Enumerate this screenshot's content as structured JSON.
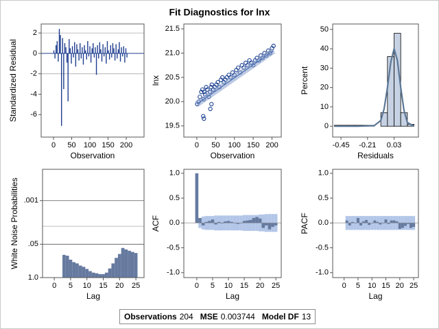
{
  "title": "Fit Diagnostics for lnx",
  "footer": [
    {
      "label": "Observations",
      "value": 204
    },
    {
      "label": "MSE",
      "value": 0.003744
    },
    {
      "label": "Model DF",
      "value": 13
    }
  ],
  "chart_data": [
    {
      "type": "needle",
      "xlabel": "Observation",
      "ylabel": "Standardized Residual",
      "color": "#1f3d8f",
      "x": [
        1,
        4,
        7,
        10,
        13,
        16,
        19,
        22,
        25,
        28,
        31,
        34,
        37,
        40,
        43,
        46,
        49,
        52,
        55,
        58,
        61,
        64,
        67,
        70,
        73,
        76,
        79,
        82,
        85,
        88,
        91,
        94,
        97,
        100,
        103,
        106,
        109,
        112,
        115,
        118,
        121,
        124,
        127,
        130,
        133,
        136,
        139,
        142,
        145,
        148,
        151,
        154,
        157,
        160,
        163,
        166,
        169,
        172,
        175,
        178,
        181,
        184,
        187,
        190,
        193,
        196,
        199,
        202
      ],
      "values": [
        0.3,
        -0.5,
        0.8,
        1.2,
        -0.8,
        2.4,
        1.8,
        -7.1,
        1.5,
        -3.5,
        1.0,
        0.6,
        -0.9,
        -4.7,
        1.4,
        0.5,
        -1.0,
        0.7,
        -0.4,
        1.1,
        -1.3,
        0.9,
        0.4,
        -0.7,
        1.0,
        -0.5,
        0.6,
        -1.1,
        0.8,
        0.3,
        -0.6,
        1.2,
        -0.3,
        0.7,
        -0.9,
        0.5,
        1.0,
        -0.4,
        0.6,
        -2.1,
        0.8,
        -0.5,
        1.1,
        0.4,
        -0.8,
        0.9,
        -0.3,
        0.6,
        -1.0,
        1.2,
        0.3,
        -0.6,
        0.8,
        -0.4,
        1.0,
        0.5,
        -0.7,
        0.9,
        -0.5,
        0.4,
        1.1,
        -0.8,
        0.6,
        -0.3,
        0.7,
        -0.9,
        0.5,
        -0.4
      ],
      "reference_lines": [
        -2,
        0,
        2
      ],
      "xlim": [
        -34,
        249
      ],
      "ylim": [
        -8.2,
        2.88
      ],
      "xticks": [
        0,
        50,
        100,
        150,
        200
      ],
      "yticks": [
        -6,
        -4,
        -2,
        0,
        2
      ]
    },
    {
      "type": "scatter",
      "xlabel": "Observation",
      "ylabel": "lnx",
      "series": [
        {
          "mode": "markers",
          "color": "#1a3f8f",
          "x": [
            1,
            5,
            8,
            12,
            15,
            18,
            20,
            22,
            25,
            28,
            32,
            35,
            38,
            40,
            44,
            48,
            52,
            56,
            60,
            64,
            68,
            72,
            76,
            80,
            85,
            90,
            95,
            100,
            105,
            110,
            115,
            120,
            125,
            130,
            135,
            140,
            145,
            150,
            155,
            160,
            165,
            170,
            175,
            180,
            185,
            190,
            195,
            200,
            204,
            17,
            19,
            36,
            39
          ],
          "values": [
            19.95,
            20.0,
            20.1,
            20.2,
            20.25,
            20.05,
            20.2,
            20.15,
            20.3,
            20.25,
            20.1,
            20.2,
            20.3,
            20.35,
            20.25,
            20.3,
            20.35,
            20.4,
            20.3,
            20.45,
            20.5,
            20.4,
            20.45,
            20.5,
            20.55,
            20.5,
            20.6,
            20.55,
            20.65,
            20.7,
            20.6,
            20.75,
            20.7,
            20.8,
            20.75,
            20.85,
            20.8,
            20.75,
            20.85,
            20.9,
            20.85,
            20.95,
            20.9,
            21.0,
            20.95,
            21.05,
            21.0,
            21.1,
            21.15,
            19.7,
            19.65,
            19.85,
            19.95
          ]
        },
        {
          "mode": "line",
          "color": "#8aa0cc",
          "x": [
            0,
            204
          ],
          "values": [
            19.95,
            21.05
          ]
        }
      ],
      "xlim": [
        -34.5,
        224.5
      ],
      "ylim": [
        19.27,
        21.6
      ],
      "xticks": [
        0,
        50,
        100,
        150,
        200
      ],
      "yticks": [
        19.5,
        {
          "value": 20,
          "label": "20.0"
        },
        20.5,
        {
          "value": 21,
          "label": "21.0"
        },
        21.5
      ]
    },
    {
      "type": "histogram",
      "xlabel": "Residuals",
      "ylabel": "Percent",
      "color": "#c6d2e3",
      "curve_color": "#5c7797",
      "bins": [
        -0.51,
        -0.45,
        -0.39,
        -0.33,
        -0.27,
        -0.21,
        -0.15,
        -0.09,
        -0.03,
        0.03,
        0.09,
        0.15,
        0.21
      ],
      "values": [
        0.5,
        0.5,
        0.5,
        0.5,
        0.5,
        0.5,
        0,
        7,
        36,
        48,
        7,
        1
      ],
      "curve": {
        "x": [
          -0.51,
          -0.3,
          -0.15,
          -0.09,
          -0.06,
          -0.03,
          0,
          0.03,
          0.06,
          0.09,
          0.12,
          0.15,
          0.21
        ],
        "values": [
          0,
          0,
          0.3,
          3,
          9,
          20,
          33,
          40,
          34,
          20,
          8,
          2,
          0
        ]
      },
      "xlim": [
        -0.525,
        0.25
      ],
      "ylim": [
        -5.6,
        52.8
      ],
      "xticks": [
        -0.45,
        -0.21,
        0.03
      ],
      "yticks": [
        0,
        10,
        20,
        30,
        40,
        50
      ]
    },
    {
      "type": "bar",
      "xlabel": "Lag",
      "ylabel": "White Noise Probabilities",
      "color": "#667a9f",
      "log_y": true,
      "grid": true,
      "x": [
        3,
        4,
        5,
        6,
        7,
        8,
        9,
        10,
        11,
        12,
        13,
        14,
        15,
        16,
        17,
        18,
        19,
        20,
        21,
        22,
        23,
        24,
        25
      ],
      "values": [
        0.13,
        0.14,
        0.2,
        0.25,
        0.28,
        0.34,
        0.38,
        0.46,
        0.56,
        0.64,
        0.68,
        0.73,
        0.73,
        0.64,
        0.44,
        0.28,
        0.17,
        0.12,
        0.07,
        0.08,
        0.09,
        0.1,
        0.11
      ],
      "reference_lines": [
        0.01
      ],
      "xlim": [
        -3.6,
        27.5
      ],
      "ylim": [
        1.0,
        6e-05
      ],
      "xticks": [
        0,
        5,
        10,
        15,
        20,
        25
      ],
      "yticks": [
        {
          "value": 1,
          "label": "1.0"
        },
        {
          "value": 0.05,
          "label": ".05"
        },
        {
          "value": 0.001,
          "label": ".001"
        }
      ]
    },
    {
      "type": "acf",
      "xlabel": "Lag",
      "ylabel": "ACF",
      "color": "#667a9f",
      "band_color": "#b3c6e8",
      "x": [
        0,
        1,
        2,
        3,
        4,
        5,
        6,
        7,
        8,
        9,
        10,
        11,
        12,
        13,
        14,
        15,
        16,
        17,
        18,
        19,
        20,
        21,
        22,
        23,
        24,
        25
      ],
      "values": [
        1.0,
        0.1,
        -0.05,
        0.02,
        0.04,
        0.07,
        -0.03,
        0.02,
        -0.01,
        0.03,
        0.04,
        0.02,
        0,
        -0.02,
        0,
        0.04,
        0.05,
        0.06,
        0.1,
        0.12,
        0.09,
        -0.1,
        -0.05,
        -0.13,
        -0.08,
        -0.05
      ],
      "band": [
        null,
        0.1,
        0.13,
        0.14,
        0.14,
        0.14,
        0.15,
        0.15,
        0.15,
        0.15,
        0.15,
        0.15,
        0.15,
        0.15,
        0.15,
        0.16,
        0.16,
        0.16,
        0.16,
        0.16,
        0.17,
        0.17,
        0.18,
        0.18,
        0.18,
        0.18
      ],
      "reference_lines": [
        0
      ],
      "xlim": [
        -4.1,
        26.7
      ],
      "ylim": [
        -1.1,
        1.08
      ],
      "xticks": [
        0,
        5,
        10,
        15,
        20,
        25
      ],
      "yticks": [
        {
          "value": -1,
          "label": "-1.0"
        },
        -0.5,
        {
          "value": 0,
          "label": "0.0"
        },
        0.5,
        {
          "value": 1,
          "label": "1.0"
        }
      ]
    },
    {
      "type": "acf",
      "xlabel": "Lag",
      "ylabel": "PACF",
      "color": "#667a9f",
      "band_color": "#b3c6e8",
      "x": [
        1,
        2,
        3,
        4,
        5,
        6,
        7,
        8,
        9,
        10,
        11,
        12,
        13,
        14,
        15,
        16,
        17,
        18,
        19,
        20,
        21,
        22,
        23,
        24,
        25
      ],
      "values": [
        0.05,
        -0.05,
        0.02,
        0,
        0.1,
        -0.05,
        0.03,
        0.06,
        -0.04,
        0,
        0.05,
        0.02,
        -0.03,
        0,
        0.07,
        -0.02,
        0.05,
        0.05,
        0.03,
        -0.12,
        -0.1,
        -0.06,
        -0.02,
        -0.1,
        -0.08
      ],
      "band": [
        0.14,
        0.14,
        0.14,
        0.14,
        0.14,
        0.14,
        0.14,
        0.14,
        0.14,
        0.14,
        0.14,
        0.14,
        0.14,
        0.14,
        0.14,
        0.14,
        0.14,
        0.14,
        0.14,
        0.14,
        0.14,
        0.14,
        0.14,
        0.14,
        0.14
      ],
      "reference_lines": [
        0
      ],
      "xlim": [
        -4.1,
        26.7
      ],
      "ylim": [
        -1.1,
        1.08
      ],
      "xticks": [
        0,
        5,
        10,
        15,
        20,
        25
      ],
      "yticks": [
        {
          "value": -1,
          "label": "-1.0"
        },
        -0.5,
        {
          "value": 0,
          "label": "0.0"
        },
        0.5,
        {
          "value": 1,
          "label": "1.0"
        }
      ]
    }
  ]
}
